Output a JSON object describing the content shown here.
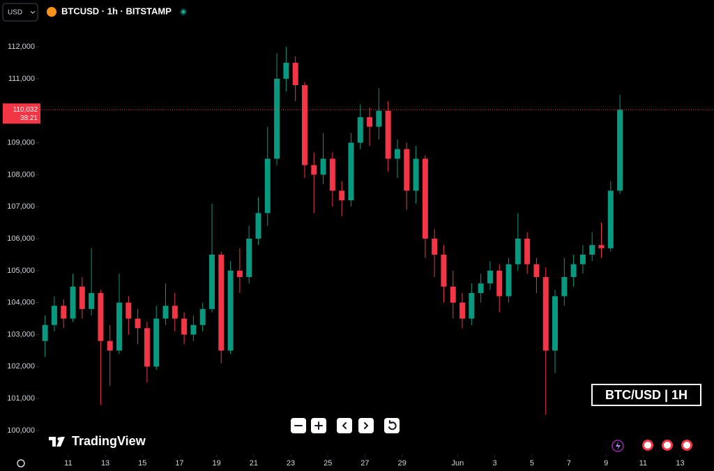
{
  "toolbar": {
    "currency": "USD",
    "symbol": "BTCUSD · 1h · BITSTAMP"
  },
  "branding": "TradingView",
  "chart_data": {
    "type": "candlestick",
    "watermark": "BTC/USD | 1H",
    "up_color": "#089981",
    "down_color": "#f23645",
    "last_price": {
      "value": 110032,
      "label": "110,032"
    },
    "countdown": "38:21",
    "xlim": [
      7.32,
      44.92
    ],
    "ylim": [
      99280,
      112590
    ],
    "yticks": [
      {
        "value": 100000,
        "label": "100,000"
      },
      {
        "value": 101000,
        "label": "101,000"
      },
      {
        "value": 102000,
        "label": "102,000"
      },
      {
        "value": 103000,
        "label": "103,000"
      },
      {
        "value": 104000,
        "label": "104,000"
      },
      {
        "value": 105000,
        "label": "105,000"
      },
      {
        "value": 106000,
        "label": "106,000"
      },
      {
        "value": 107000,
        "label": "107,000"
      },
      {
        "value": 108000,
        "label": "108,000"
      },
      {
        "value": 109000,
        "label": "109,000"
      },
      {
        "value": 111000,
        "label": "111,000"
      },
      {
        "value": 112000,
        "label": "112,000"
      }
    ],
    "xticks": [
      11,
      13,
      15,
      17,
      19,
      21,
      23,
      25,
      27,
      29,
      {
        "value": 32,
        "label": "Jun"
      },
      {
        "value": 34,
        "label": "3"
      },
      {
        "value": 36,
        "label": "5"
      },
      {
        "value": 38,
        "label": "7"
      },
      {
        "value": 40,
        "label": "9"
      },
      {
        "value": 42,
        "label": "11"
      },
      {
        "value": 44,
        "label": "13"
      }
    ],
    "x": [
      9.75,
      10.25,
      10.75,
      11.25,
      11.75,
      12.25,
      12.75,
      13.25,
      13.75,
      14.25,
      14.75,
      15.25,
      15.75,
      16.25,
      16.75,
      17.25,
      17.75,
      18.25,
      18.75,
      19.25,
      19.75,
      20.25,
      20.75,
      21.25,
      21.75,
      22.25,
      22.75,
      23.25,
      23.75,
      24.25,
      24.75,
      25.25,
      25.75,
      26.25,
      26.75,
      27.25,
      27.75,
      28.25,
      28.75,
      29.25,
      29.75,
      30.25,
      30.75,
      31.25,
      31.75,
      32.25,
      32.75,
      33.25,
      33.75,
      34.25,
      34.75,
      35.25,
      35.75,
      36.25,
      36.75,
      37.25,
      37.75,
      38.25,
      38.75,
      39.25,
      39.75,
      40.25,
      40.75
    ],
    "open": [
      102800,
      103300,
      103900,
      103500,
      104500,
      103800,
      104300,
      102800,
      102500,
      104000,
      103500,
      103200,
      102000,
      103500,
      103900,
      103500,
      103000,
      103300,
      103800,
      105500,
      102500,
      105000,
      104800,
      106000,
      106800,
      108500,
      111000,
      111500,
      110800,
      108300,
      108000,
      108500,
      107500,
      107200,
      109000,
      109800,
      109500,
      110000,
      108500,
      108800,
      107500,
      108500,
      106000,
      105500,
      104500,
      104000,
      103500,
      104300,
      104600,
      105000,
      104200,
      105200,
      106000,
      105200,
      104800,
      102500,
      104200,
      104800,
      105200,
      105500,
      105800,
      105700,
      107500
    ],
    "high": [
      103600,
      104200,
      104100,
      104900,
      104800,
      105700,
      104400,
      103300,
      104900,
      104200,
      103800,
      103400,
      103900,
      104600,
      104300,
      103700,
      103600,
      104000,
      107100,
      105600,
      105300,
      105700,
      106400,
      107300,
      109500,
      111800,
      112000,
      111700,
      110900,
      108700,
      109300,
      108700,
      107800,
      109300,
      110200,
      110100,
      110700,
      110300,
      109100,
      109000,
      108900,
      108600,
      106300,
      105800,
      105000,
      104300,
      104600,
      104900,
      105300,
      105200,
      105400,
      106800,
      106200,
      105400,
      105100,
      104400,
      105400,
      105500,
      105800,
      106200,
      106500,
      107800,
      110500
    ],
    "low": [
      102300,
      103100,
      103200,
      103400,
      103500,
      103600,
      100800,
      101400,
      102400,
      103000,
      102700,
      101500,
      101900,
      103300,
      103100,
      102700,
      102800,
      103100,
      103700,
      102100,
      102400,
      104300,
      104600,
      105800,
      106400,
      108300,
      110600,
      110300,
      107900,
      106800,
      107700,
      107000,
      106700,
      107000,
      108800,
      108900,
      109100,
      108100,
      107900,
      106900,
      107100,
      105400,
      104800,
      104000,
      103500,
      103200,
      103300,
      104000,
      104400,
      103700,
      104000,
      105000,
      104900,
      104300,
      100500,
      101800,
      103900,
      104500,
      104900,
      105300,
      105400,
      105600,
      107400
    ],
    "close": [
      103300,
      103900,
      103500,
      104500,
      103800,
      104300,
      102800,
      102500,
      104000,
      103500,
      103200,
      102000,
      103500,
      103900,
      103500,
      103000,
      103300,
      103800,
      105500,
      102500,
      105000,
      104800,
      106000,
      106800,
      108500,
      111000,
      111500,
      110800,
      108300,
      108000,
      108500,
      107500,
      107200,
      109000,
      109800,
      109500,
      110000,
      108500,
      108800,
      107500,
      108500,
      106000,
      105500,
      104500,
      104000,
      103500,
      104300,
      104600,
      105000,
      104200,
      105200,
      106000,
      105200,
      104800,
      102500,
      104200,
      104800,
      105200,
      105500,
      105800,
      105700,
      107500,
      110032
    ]
  }
}
